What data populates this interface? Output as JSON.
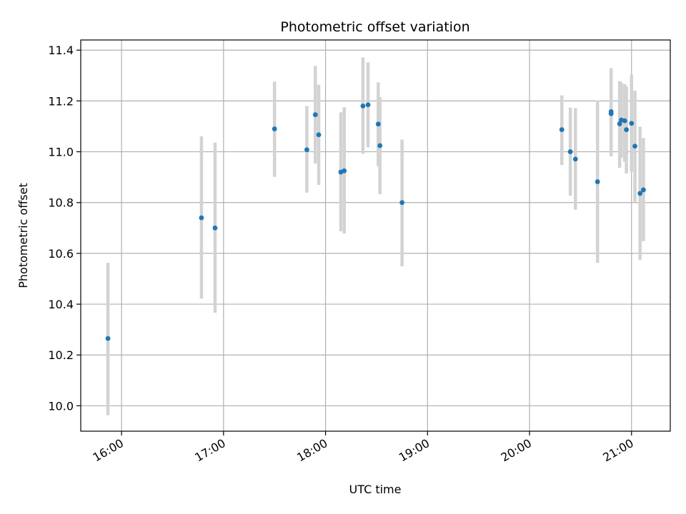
{
  "chart_data": {
    "type": "scatter",
    "title": "Photometric offset variation",
    "xlabel": "UTC time",
    "ylabel": "Photometric offset",
    "grid": true,
    "legend": "none",
    "xlim_hours": [
      15.6,
      21.38
    ],
    "ylim": [
      9.9,
      11.44
    ],
    "x_ticks": [
      {
        "hour": 16,
        "label": "16:00"
      },
      {
        "hour": 17,
        "label": "17:00"
      },
      {
        "hour": 18,
        "label": "18:00"
      },
      {
        "hour": 19,
        "label": "19:00"
      },
      {
        "hour": 20,
        "label": "20:00"
      },
      {
        "hour": 21,
        "label": "21:00"
      }
    ],
    "y_ticks": [
      {
        "value": 10.0,
        "label": "10.0"
      },
      {
        "value": 10.2,
        "label": "10.2"
      },
      {
        "value": 10.4,
        "label": "10.4"
      },
      {
        "value": 10.6,
        "label": "10.6"
      },
      {
        "value": 10.8,
        "label": "10.8"
      },
      {
        "value": 11.0,
        "label": "11.0"
      },
      {
        "value": 11.2,
        "label": "11.2"
      },
      {
        "value": 11.4,
        "label": "11.4"
      }
    ],
    "series": [
      {
        "point_color": "#1f77b4",
        "errorbar_color": "#d3d3d3",
        "points": [
          {
            "time": "15:52",
            "y": 10.265,
            "lo": 9.963,
            "hi": 10.563
          },
          {
            "time": "16:47",
            "y": 10.74,
            "lo": 10.422,
            "hi": 11.061
          },
          {
            "time": "16:55",
            "y": 10.7,
            "lo": 10.366,
            "hi": 11.036
          },
          {
            "time": "17:30",
            "y": 11.09,
            "lo": 10.901,
            "hi": 11.276
          },
          {
            "time": "17:49",
            "y": 11.008,
            "lo": 10.839,
            "hi": 11.18
          },
          {
            "time": "17:54",
            "y": 11.146,
            "lo": 10.954,
            "hi": 11.338
          },
          {
            "time": "17:56",
            "y": 11.067,
            "lo": 10.869,
            "hi": 11.264
          },
          {
            "time": "18:09",
            "y": 10.92,
            "lo": 10.687,
            "hi": 11.155
          },
          {
            "time": "18:11",
            "y": 10.925,
            "lo": 10.678,
            "hi": 11.175
          },
          {
            "time": "18:22",
            "y": 11.18,
            "lo": 10.992,
            "hi": 11.371
          },
          {
            "time": "18:25",
            "y": 11.185,
            "lo": 11.017,
            "hi": 11.352
          },
          {
            "time": "18:31",
            "y": 11.109,
            "lo": 10.943,
            "hi": 11.273
          },
          {
            "time": "18:32",
            "y": 11.024,
            "lo": 10.833,
            "hi": 11.215
          },
          {
            "time": "18:45",
            "y": 10.8,
            "lo": 10.549,
            "hi": 11.048
          },
          {
            "time": "20:19",
            "y": 11.087,
            "lo": 10.948,
            "hi": 11.222
          },
          {
            "time": "20:24",
            "y": 11.0,
            "lo": 10.827,
            "hi": 11.174
          },
          {
            "time": "20:27",
            "y": 10.971,
            "lo": 10.772,
            "hi": 11.172
          },
          {
            "time": "20:40",
            "y": 10.882,
            "lo": 10.563,
            "hi": 11.201
          },
          {
            "time": "20:48",
            "y": 11.15,
            "lo": 10.982,
            "hi": 11.329
          },
          {
            "time": "20:48",
            "y": 11.158,
            "lo": 11.01,
            "hi": 11.3
          },
          {
            "time": "20:53",
            "y": 11.11,
            "lo": 10.937,
            "hi": 11.278
          },
          {
            "time": "20:54",
            "y": 11.125,
            "lo": 10.976,
            "hi": 11.272
          },
          {
            "time": "20:56",
            "y": 11.122,
            "lo": 10.96,
            "hi": 11.266
          },
          {
            "time": "20:57",
            "y": 11.087,
            "lo": 10.914,
            "hi": 11.257
          },
          {
            "time": "21:00",
            "y": 11.112,
            "lo": 10.922,
            "hi": 11.303
          },
          {
            "time": "21:02",
            "y": 11.022,
            "lo": 10.803,
            "hi": 11.24
          },
          {
            "time": "21:05",
            "y": 10.836,
            "lo": 10.574,
            "hi": 11.099
          },
          {
            "time": "21:07",
            "y": 10.85,
            "lo": 10.648,
            "hi": 11.054
          }
        ]
      }
    ]
  }
}
